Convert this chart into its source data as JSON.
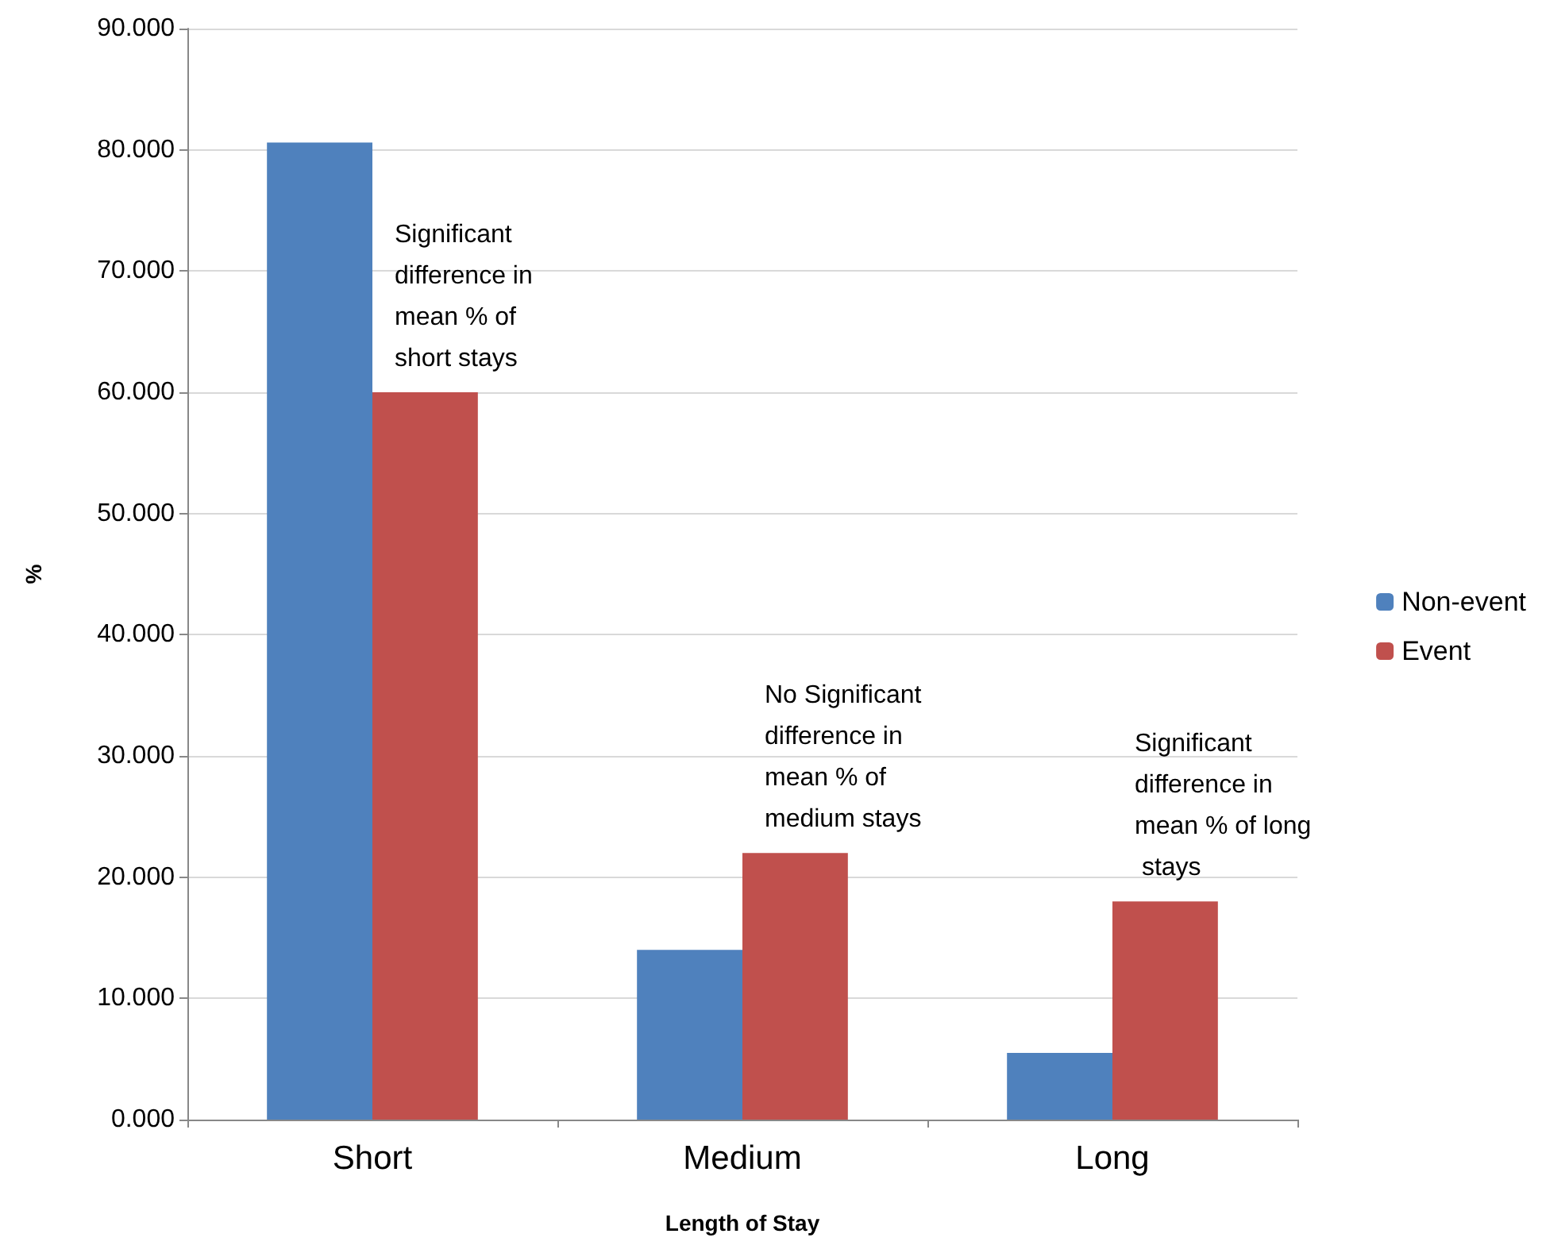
{
  "chart_data": {
    "type": "bar",
    "xlabel": "Length of Stay",
    "ylabel": "%",
    "categories": [
      "Short",
      "Medium",
      "Long"
    ],
    "series": [
      {
        "name": "Non-event",
        "color": "#4f81bd",
        "values": [
          80.6,
          14.0,
          5.5
        ]
      },
      {
        "name": "Event",
        "color": "#c0504d",
        "values": [
          60.0,
          22.0,
          18.0
        ]
      }
    ],
    "ylim": [
      0,
      90
    ],
    "yticks": [
      {
        "value": 0,
        "label": "0.000"
      },
      {
        "value": 10,
        "label": "10.000"
      },
      {
        "value": 20,
        "label": "20.000"
      },
      {
        "value": 30,
        "label": "30.000"
      },
      {
        "value": 40,
        "label": "40.000"
      },
      {
        "value": 50,
        "label": "50.000"
      },
      {
        "value": 60,
        "label": "60.000"
      },
      {
        "value": 70,
        "label": "70.000"
      },
      {
        "value": 80,
        "label": "80.000"
      },
      {
        "value": 90,
        "label": "90.000"
      }
    ],
    "grid": "y",
    "legend": "right",
    "annotations": [
      "Significant difference in mean % of short stays",
      "No Significant difference in mean % of medium stays",
      "Significant difference in mean % of long stays"
    ]
  }
}
